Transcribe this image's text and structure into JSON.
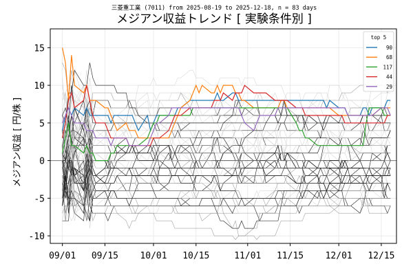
{
  "chart_data": {
    "type": "line",
    "subtitle": "三菱重工業 (7011) from 2025-08-19 to 2025-12-18, n = 83 days",
    "title": "メジアン収益トレンド [ 実験条件別 ]",
    "xlabel": "",
    "ylabel": "メジアン収益 [ 円/株 ]",
    "x_ticks": [
      "09/01",
      "09/15",
      "10/01",
      "10/15",
      "11/01",
      "11/15",
      "12/01",
      "12/15"
    ],
    "y_ticks": [
      "15",
      "10",
      "5",
      "0",
      "-5",
      "-10"
    ],
    "ylim": [
      -11,
      17.5
    ],
    "xlim": [
      "2025-08-28",
      "2025-12-20"
    ],
    "grid": true,
    "zero_line": true,
    "legend": {
      "title": "top 5",
      "placement": "top-right"
    },
    "dates": [
      "2025-09-01",
      "2025-09-02",
      "2025-09-03",
      "2025-09-04",
      "2025-09-05",
      "2025-09-08",
      "2025-09-09",
      "2025-09-10",
      "2025-09-11",
      "2025-09-12",
      "2025-09-15",
      "2025-09-16",
      "2025-09-17",
      "2025-09-18",
      "2025-09-19",
      "2025-09-22",
      "2025-09-23",
      "2025-09-24",
      "2025-09-25",
      "2025-09-26",
      "2025-09-29",
      "2025-09-30",
      "2025-10-01",
      "2025-10-02",
      "2025-10-03",
      "2025-10-06",
      "2025-10-07",
      "2025-10-08",
      "2025-10-09",
      "2025-10-10",
      "2025-10-13",
      "2025-10-14",
      "2025-10-15",
      "2025-10-16",
      "2025-10-17",
      "2025-10-20",
      "2025-10-21",
      "2025-10-22",
      "2025-10-23",
      "2025-10-24",
      "2025-10-27",
      "2025-10-28",
      "2025-10-29",
      "2025-10-30",
      "2025-10-31",
      "2025-11-03",
      "2025-11-04",
      "2025-11-05",
      "2025-11-06",
      "2025-11-07",
      "2025-11-10",
      "2025-11-11",
      "2025-11-12",
      "2025-11-13",
      "2025-11-14",
      "2025-11-17",
      "2025-11-18",
      "2025-11-19",
      "2025-11-20",
      "2025-11-21",
      "2025-11-24",
      "2025-11-25",
      "2025-11-26",
      "2025-11-27",
      "2025-11-28",
      "2025-12-01",
      "2025-12-02",
      "2025-12-03",
      "2025-12-04",
      "2025-12-05",
      "2025-12-08",
      "2025-12-09",
      "2025-12-10",
      "2025-12-11",
      "2025-12-12",
      "2025-12-15",
      "2025-12-16",
      "2025-12-17",
      "2025-12-18"
    ],
    "series": [
      {
        "name": "90",
        "color": "#1f77b4",
        "values": [
          4,
          6,
          7,
          6,
          7,
          6,
          7,
          6,
          6,
          6,
          6,
          6,
          5,
          6,
          6,
          6,
          6,
          6,
          5,
          4,
          6,
          4,
          5,
          6,
          6,
          6,
          6,
          6,
          7,
          7,
          8,
          8,
          8,
          8,
          8,
          8,
          8,
          9,
          8,
          8,
          9,
          9,
          8,
          8,
          8,
          8,
          8,
          8,
          8,
          8,
          8,
          8,
          8,
          8,
          8,
          8,
          8,
          8,
          8,
          8,
          8,
          8,
          8,
          7,
          8,
          7,
          7,
          7,
          6,
          6,
          6,
          7,
          7,
          6,
          7,
          7,
          7,
          8,
          8
        ]
      },
      {
        "name": "68",
        "color": "#ff7f0e",
        "values": [
          15,
          13,
          8,
          14,
          10,
          9,
          10,
          8,
          8,
          8,
          7,
          7,
          6,
          5,
          4,
          5,
          4,
          4,
          4,
          3,
          3,
          3,
          3,
          3,
          3,
          3,
          4,
          5,
          6,
          7,
          8,
          9,
          10,
          9,
          10,
          9,
          9,
          10,
          9,
          10,
          10,
          9,
          9,
          8,
          8,
          7,
          7,
          7,
          7,
          7,
          7,
          7,
          8,
          8,
          7,
          7,
          7,
          7,
          7,
          7,
          7,
          7,
          7,
          7,
          7,
          6,
          6,
          6,
          6,
          6,
          6,
          6,
          6,
          6,
          6,
          7,
          7,
          7,
          7
        ]
      },
      {
        "name": "117",
        "color": "#2ca02c",
        "values": [
          1,
          3,
          5,
          2,
          2,
          1,
          2,
          1,
          1,
          0,
          0,
          0,
          1,
          1,
          2,
          2,
          2,
          2,
          2,
          2,
          3,
          4,
          5,
          5,
          6,
          6,
          6,
          6,
          6,
          6,
          6,
          7,
          7,
          7,
          7,
          7,
          7,
          7,
          7,
          7,
          7,
          7,
          7,
          7,
          7,
          7,
          7,
          7,
          7,
          7,
          7,
          7,
          7,
          7,
          7,
          5,
          4,
          4,
          3,
          3,
          2,
          2,
          2,
          2,
          2,
          2,
          2,
          2,
          2,
          2,
          2,
          2,
          5,
          7,
          7,
          7,
          6,
          6,
          6
        ]
      },
      {
        "name": "44",
        "color": "#d62728",
        "values": [
          3,
          5,
          8,
          9,
          7,
          8,
          10,
          8,
          6,
          5,
          5,
          4,
          3,
          3,
          3,
          3,
          2,
          2,
          2,
          2,
          2,
          2,
          3,
          3,
          3,
          4,
          5,
          6,
          6,
          6,
          7,
          7,
          7,
          7,
          7,
          7,
          8,
          8,
          8,
          9,
          8,
          9,
          9,
          9,
          10,
          9,
          9,
          9,
          9,
          9,
          8,
          8,
          8,
          8,
          8,
          7,
          7,
          7,
          6,
          6,
          6,
          6,
          6,
          6,
          6,
          6,
          6,
          5,
          5,
          5,
          5,
          5,
          5,
          5,
          5,
          5,
          5,
          6,
          6
        ]
      },
      {
        "name": "29",
        "color": "#9467bd",
        "values": [
          5,
          6,
          7,
          6,
          5,
          5,
          4,
          4,
          4,
          3,
          3,
          3,
          2,
          3,
          3,
          3,
          2,
          2,
          2,
          2,
          2,
          3,
          4,
          5,
          5,
          6,
          7,
          7,
          7,
          7,
          7,
          7,
          7,
          7,
          7,
          7,
          7,
          7,
          7,
          7,
          7,
          7,
          7,
          6,
          5,
          4,
          5,
          6,
          6,
          6,
          6,
          7,
          7,
          7,
          7,
          7,
          7,
          7,
          7,
          7,
          7,
          7,
          7,
          7,
          7,
          7,
          7,
          7,
          6,
          6,
          6,
          6,
          6,
          6,
          6,
          7,
          7,
          7,
          6
        ]
      }
    ]
  },
  "legend_labels": [
    "90",
    "68",
    "117",
    "44",
    "29"
  ]
}
